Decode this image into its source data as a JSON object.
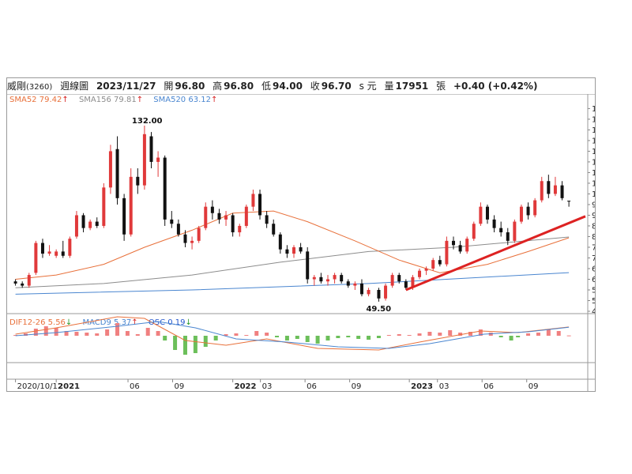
{
  "header": {
    "stock_name": "威剛",
    "stock_code": "(3260)",
    "chart_kind": "週線圖",
    "date": "2023/11/27",
    "open_label": "開",
    "open": "96.80",
    "high_label": "高",
    "high": "96.80",
    "low_label": "低",
    "low": "94.00",
    "close_label": "收",
    "close": "96.70",
    "close_suffix": "s 元",
    "volume_label": "量",
    "volume": "17951",
    "volume_unit": "張",
    "change": "+0.40 (+0.42%)"
  },
  "legend": {
    "sma52": {
      "label": "SMA52",
      "value": "79.42",
      "arrow": "↑",
      "color": "#e8703a"
    },
    "sma156": {
      "label": "SMA156",
      "value": "79.81",
      "arrow": "↑",
      "color": "#8c8c8c"
    },
    "sma520": {
      "label": "SMA520",
      "value": "63.12",
      "arrow": "↑",
      "color": "#4a86d0"
    },
    "dif": {
      "label": "DIF12-26",
      "value": "5.56",
      "arrow": "↓",
      "color": "#e8703a"
    },
    "macd": {
      "label": "MACD9",
      "value": "5.37",
      "arrow": "↑",
      "color": "#4a86d0"
    },
    "osc": {
      "label": "OSC",
      "value": "0.19",
      "arrow": "↓",
      "color": "#2255cc"
    }
  },
  "colors": {
    "up": "#e0393a",
    "down": "#111111",
    "osc_up": "#f08080",
    "osc_down": "#6cbf5a",
    "trendline": "#dd2222",
    "arrow_up": "#d62020",
    "arrow_down": "#2a9a2a"
  },
  "chart_data": {
    "type": "candlestick",
    "title": "",
    "y_ticks": [
      "140.0",
      "135.0",
      "130.0",
      "125.0",
      "120.0",
      "115.0",
      "110.0",
      "105.0",
      "100.0",
      "95.0",
      "90.0",
      "85.0",
      "80.0",
      "75.0",
      "70.0",
      "65.0",
      "60.0",
      "55.0",
      "50.0",
      "45.0"
    ],
    "ylim": [
      45,
      142
    ],
    "x_ticks": [
      {
        "label": "2020/10/12",
        "date": "2020-10-12"
      },
      {
        "label": "2021",
        "date": "2021-01-04"
      },
      {
        "label": "06",
        "date": "2021-06-01"
      },
      {
        "label": "09",
        "date": "2021-09-01"
      },
      {
        "label": "2022",
        "date": "2022-01-03"
      },
      {
        "label": "03",
        "date": "2022-03-01"
      },
      {
        "label": "06",
        "date": "2022-06-01"
      },
      {
        "label": "09",
        "date": "2022-09-01"
      },
      {
        "label": "2023",
        "date": "2023-01-02"
      },
      {
        "label": "03",
        "date": "2023-03-01"
      },
      {
        "label": "06",
        "date": "2023-06-01"
      },
      {
        "label": "09",
        "date": "2023-09-01"
      }
    ],
    "x_range": [
      "2020-09-28",
      "2023-12-31"
    ],
    "annotations": [
      {
        "text": "132.00",
        "date": "2021-07-05",
        "value": 132.0
      },
      {
        "text": "49.50",
        "date": "2022-10-31",
        "value": 49.5
      }
    ],
    "candles": [
      {
        "date": "2020-10-12",
        "o": 59,
        "h": 60,
        "l": 57,
        "c": 58
      },
      {
        "date": "2020-10-26",
        "o": 58,
        "h": 59,
        "l": 56,
        "c": 57
      },
      {
        "date": "2020-11-09",
        "o": 57,
        "h": 63,
        "l": 56,
        "c": 62
      },
      {
        "date": "2020-11-23",
        "o": 63,
        "h": 78,
        "l": 62,
        "c": 77
      },
      {
        "date": "2020-12-07",
        "o": 77,
        "h": 79,
        "l": 70,
        "c": 72
      },
      {
        "date": "2020-12-21",
        "o": 72,
        "h": 76,
        "l": 71,
        "c": 73
      },
      {
        "date": "2021-01-04",
        "o": 71,
        "h": 74,
        "l": 70,
        "c": 73
      },
      {
        "date": "2021-01-18",
        "o": 73,
        "h": 78,
        "l": 70,
        "c": 71
      },
      {
        "date": "2021-02-01",
        "o": 71,
        "h": 80,
        "l": 70,
        "c": 79
      },
      {
        "date": "2021-02-15",
        "o": 80,
        "h": 92,
        "l": 79,
        "c": 90
      },
      {
        "date": "2021-03-01",
        "o": 90,
        "h": 91,
        "l": 82,
        "c": 84
      },
      {
        "date": "2021-03-15",
        "o": 84,
        "h": 88,
        "l": 83,
        "c": 87
      },
      {
        "date": "2021-03-29",
        "o": 87,
        "h": 89,
        "l": 84,
        "c": 85
      },
      {
        "date": "2021-04-12",
        "o": 85,
        "h": 105,
        "l": 84,
        "c": 103
      },
      {
        "date": "2021-04-26",
        "o": 103,
        "h": 123,
        "l": 100,
        "c": 120
      },
      {
        "date": "2021-05-10",
        "o": 121,
        "h": 127,
        "l": 95,
        "c": 98
      },
      {
        "date": "2021-05-24",
        "o": 98,
        "h": 100,
        "l": 78,
        "c": 81
      },
      {
        "date": "2021-06-07",
        "o": 81,
        "h": 112,
        "l": 80,
        "c": 108
      },
      {
        "date": "2021-06-21",
        "o": 108,
        "h": 112,
        "l": 100,
        "c": 104
      },
      {
        "date": "2021-07-05",
        "o": 104,
        "h": 132,
        "l": 102,
        "c": 128
      },
      {
        "date": "2021-07-19",
        "o": 127,
        "h": 129,
        "l": 112,
        "c": 115
      },
      {
        "date": "2021-08-02",
        "o": 115,
        "h": 120,
        "l": 108,
        "c": 117
      },
      {
        "date": "2021-08-16",
        "o": 117,
        "h": 118,
        "l": 85,
        "c": 88
      },
      {
        "date": "2021-08-30",
        "o": 88,
        "h": 92,
        "l": 84,
        "c": 86
      },
      {
        "date": "2021-09-13",
        "o": 86,
        "h": 88,
        "l": 80,
        "c": 81
      },
      {
        "date": "2021-09-27",
        "o": 81,
        "h": 83,
        "l": 75,
        "c": 77
      },
      {
        "date": "2021-10-11",
        "o": 77,
        "h": 80,
        "l": 74,
        "c": 78
      },
      {
        "date": "2021-10-25",
        "o": 78,
        "h": 85,
        "l": 77,
        "c": 84
      },
      {
        "date": "2021-11-08",
        "o": 84,
        "h": 96,
        "l": 83,
        "c": 94
      },
      {
        "date": "2021-11-22",
        "o": 94,
        "h": 97,
        "l": 88,
        "c": 91
      },
      {
        "date": "2021-12-06",
        "o": 91,
        "h": 93,
        "l": 86,
        "c": 88
      },
      {
        "date": "2021-12-20",
        "o": 88,
        "h": 92,
        "l": 85,
        "c": 90
      },
      {
        "date": "2022-01-03",
        "o": 90,
        "h": 91,
        "l": 80,
        "c": 82
      },
      {
        "date": "2022-01-17",
        "o": 82,
        "h": 86,
        "l": 80,
        "c": 85
      },
      {
        "date": "2022-01-31",
        "o": 85,
        "h": 95,
        "l": 84,
        "c": 94
      },
      {
        "date": "2022-02-14",
        "o": 94,
        "h": 102,
        "l": 92,
        "c": 100
      },
      {
        "date": "2022-02-28",
        "o": 100,
        "h": 102,
        "l": 88,
        "c": 90
      },
      {
        "date": "2022-03-14",
        "o": 90,
        "h": 92,
        "l": 84,
        "c": 86
      },
      {
        "date": "2022-03-28",
        "o": 86,
        "h": 88,
        "l": 80,
        "c": 81
      },
      {
        "date": "2022-04-11",
        "o": 81,
        "h": 82,
        "l": 72,
        "c": 74
      },
      {
        "date": "2022-04-25",
        "o": 74,
        "h": 76,
        "l": 70,
        "c": 72
      },
      {
        "date": "2022-05-09",
        "o": 72,
        "h": 76,
        "l": 70,
        "c": 75
      },
      {
        "date": "2022-05-23",
        "o": 75,
        "h": 77,
        "l": 72,
        "c": 73
      },
      {
        "date": "2022-06-06",
        "o": 73,
        "h": 75,
        "l": 58,
        "c": 60
      },
      {
        "date": "2022-06-20",
        "o": 60,
        "h": 62,
        "l": 57,
        "c": 61
      },
      {
        "date": "2022-07-04",
        "o": 61,
        "h": 63,
        "l": 58,
        "c": 59
      },
      {
        "date": "2022-07-18",
        "o": 59,
        "h": 62,
        "l": 57,
        "c": 60
      },
      {
        "date": "2022-08-01",
        "o": 60,
        "h": 63,
        "l": 58,
        "c": 62
      },
      {
        "date": "2022-08-15",
        "o": 62,
        "h": 63,
        "l": 58,
        "c": 59
      },
      {
        "date": "2022-08-29",
        "o": 59,
        "h": 60,
        "l": 56,
        "c": 57
      },
      {
        "date": "2022-09-12",
        "o": 57,
        "h": 59,
        "l": 55,
        "c": 58
      },
      {
        "date": "2022-09-26",
        "o": 58,
        "h": 60,
        "l": 52,
        "c": 53
      },
      {
        "date": "2022-10-10",
        "o": 53,
        "h": 56,
        "l": 52,
        "c": 55
      },
      {
        "date": "2022-10-31",
        "o": 55,
        "h": 56,
        "l": 49.5,
        "c": 51
      },
      {
        "date": "2022-11-14",
        "o": 51,
        "h": 58,
        "l": 50,
        "c": 57
      },
      {
        "date": "2022-11-28",
        "o": 57,
        "h": 63,
        "l": 56,
        "c": 62
      },
      {
        "date": "2022-12-12",
        "o": 62,
        "h": 63,
        "l": 58,
        "c": 59
      },
      {
        "date": "2022-12-26",
        "o": 59,
        "h": 60,
        "l": 55,
        "c": 56
      },
      {
        "date": "2023-01-09",
        "o": 56,
        "h": 62,
        "l": 55,
        "c": 61
      },
      {
        "date": "2023-01-23",
        "o": 61,
        "h": 65,
        "l": 60,
        "c": 64
      },
      {
        "date": "2023-02-06",
        "o": 64,
        "h": 66,
        "l": 62,
        "c": 65
      },
      {
        "date": "2023-02-20",
        "o": 65,
        "h": 70,
        "l": 64,
        "c": 69
      },
      {
        "date": "2023-03-06",
        "o": 69,
        "h": 71,
        "l": 66,
        "c": 67
      },
      {
        "date": "2023-03-20",
        "o": 67,
        "h": 80,
        "l": 66,
        "c": 78
      },
      {
        "date": "2023-04-03",
        "o": 78,
        "h": 80,
        "l": 74,
        "c": 76
      },
      {
        "date": "2023-04-17",
        "o": 76,
        "h": 78,
        "l": 72,
        "c": 73
      },
      {
        "date": "2023-05-01",
        "o": 73,
        "h": 80,
        "l": 72,
        "c": 79
      },
      {
        "date": "2023-05-15",
        "o": 79,
        "h": 87,
        "l": 78,
        "c": 86
      },
      {
        "date": "2023-05-29",
        "o": 86,
        "h": 96,
        "l": 85,
        "c": 94
      },
      {
        "date": "2023-06-12",
        "o": 94,
        "h": 95,
        "l": 86,
        "c": 88
      },
      {
        "date": "2023-06-26",
        "o": 88,
        "h": 90,
        "l": 82,
        "c": 84
      },
      {
        "date": "2023-07-10",
        "o": 84,
        "h": 87,
        "l": 80,
        "c": 82
      },
      {
        "date": "2023-07-24",
        "o": 82,
        "h": 84,
        "l": 76,
        "c": 78
      },
      {
        "date": "2023-08-07",
        "o": 78,
        "h": 88,
        "l": 77,
        "c": 87
      },
      {
        "date": "2023-08-21",
        "o": 87,
        "h": 95,
        "l": 86,
        "c": 94
      },
      {
        "date": "2023-09-04",
        "o": 94,
        "h": 96,
        "l": 88,
        "c": 90
      },
      {
        "date": "2023-09-18",
        "o": 90,
        "h": 98,
        "l": 89,
        "c": 97
      },
      {
        "date": "2023-10-02",
        "o": 97,
        "h": 108,
        "l": 96,
        "c": 106
      },
      {
        "date": "2023-10-16",
        "o": 106,
        "h": 109,
        "l": 98,
        "c": 100
      },
      {
        "date": "2023-10-30",
        "o": 100,
        "h": 108,
        "l": 99,
        "c": 104
      },
      {
        "date": "2023-11-13",
        "o": 104,
        "h": 106,
        "l": 97,
        "c": 98
      },
      {
        "date": "2023-11-27",
        "o": 96.8,
        "h": 96.8,
        "l": 94,
        "c": 96.7
      }
    ],
    "sma52": [
      [
        "2020-10-12",
        60
      ],
      [
        "2021-01-04",
        62
      ],
      [
        "2021-04-12",
        67
      ],
      [
        "2021-07-05",
        75
      ],
      [
        "2021-10-11",
        83
      ],
      [
        "2022-01-03",
        91
      ],
      [
        "2022-03-28",
        92
      ],
      [
        "2022-06-06",
        87
      ],
      [
        "2022-09-12",
        78
      ],
      [
        "2022-12-12",
        69
      ],
      [
        "2023-03-06",
        63
      ],
      [
        "2023-06-12",
        67
      ],
      [
        "2023-09-04",
        73
      ],
      [
        "2023-11-27",
        79.42
      ]
    ],
    "sma156": [
      [
        "2020-10-12",
        56
      ],
      [
        "2021-04-12",
        58
      ],
      [
        "2021-10-11",
        62
      ],
      [
        "2022-04-11",
        68
      ],
      [
        "2022-10-10",
        73
      ],
      [
        "2023-04-03",
        75
      ],
      [
        "2023-11-27",
        79.81
      ]
    ],
    "sma520": [
      [
        "2020-10-12",
        53
      ],
      [
        "2021-10-11",
        55
      ],
      [
        "2022-10-10",
        58
      ],
      [
        "2023-11-27",
        63.12
      ]
    ],
    "trendline": [
      [
        "2022-12-26",
        55
      ],
      [
        "2023-12-31",
        89.5
      ]
    ],
    "macd_ticks": [
      "10",
      "0",
      "-10"
    ],
    "macd_ylim": [
      -15,
      12
    ],
    "osc": [
      [
        "2020-10-12",
        0.5
      ],
      [
        "2020-11-02",
        1.5
      ],
      [
        "2020-11-23",
        4.5
      ],
      [
        "2020-12-14",
        6
      ],
      [
        "2021-01-04",
        5
      ],
      [
        "2021-01-25",
        3
      ],
      [
        "2021-02-15",
        2.5
      ],
      [
        "2021-03-08",
        2
      ],
      [
        "2021-03-29",
        1.5
      ],
      [
        "2021-04-19",
        4
      ],
      [
        "2021-05-10",
        8
      ],
      [
        "2021-05-31",
        3
      ],
      [
        "2021-06-21",
        1
      ],
      [
        "2021-07-12",
        5
      ],
      [
        "2021-08-02",
        3
      ],
      [
        "2021-08-16",
        -3
      ],
      [
        "2021-09-06",
        -9
      ],
      [
        "2021-09-27",
        -12
      ],
      [
        "2021-10-18",
        -11
      ],
      [
        "2021-11-08",
        -7
      ],
      [
        "2021-11-29",
        -3
      ],
      [
        "2021-12-20",
        1
      ],
      [
        "2022-01-10",
        1.5
      ],
      [
        "2022-01-31",
        0.5
      ],
      [
        "2022-02-21",
        3
      ],
      [
        "2022-03-14",
        2
      ],
      [
        "2022-04-04",
        -1
      ],
      [
        "2022-04-25",
        -3
      ],
      [
        "2022-05-16",
        -2
      ],
      [
        "2022-06-06",
        -4
      ],
      [
        "2022-06-27",
        -5
      ],
      [
        "2022-07-18",
        -3
      ],
      [
        "2022-08-08",
        -1.5
      ],
      [
        "2022-08-29",
        -1
      ],
      [
        "2022-09-19",
        -2
      ],
      [
        "2022-10-10",
        -2.5
      ],
      [
        "2022-10-31",
        -1.5
      ],
      [
        "2022-11-21",
        0.5
      ],
      [
        "2022-12-12",
        1
      ],
      [
        "2023-01-02",
        0.5
      ],
      [
        "2023-01-23",
        1.5
      ],
      [
        "2023-02-13",
        2.5
      ],
      [
        "2023-03-06",
        2
      ],
      [
        "2023-03-27",
        3.5
      ],
      [
        "2023-04-17",
        2
      ],
      [
        "2023-05-08",
        2.5
      ],
      [
        "2023-05-29",
        4
      ],
      [
        "2023-06-19",
        2
      ],
      [
        "2023-07-10",
        -1
      ],
      [
        "2023-07-31",
        -3
      ],
      [
        "2023-08-14",
        -1
      ],
      [
        "2023-09-04",
        1.5
      ],
      [
        "2023-09-25",
        2
      ],
      [
        "2023-10-16",
        4
      ],
      [
        "2023-11-06",
        3
      ],
      [
        "2023-11-27",
        0.19
      ]
    ],
    "dif": [
      [
        "2020-10-12",
        1
      ],
      [
        "2021-01-04",
        5
      ],
      [
        "2021-05-10",
        12
      ],
      [
        "2021-07-05",
        11
      ],
      [
        "2021-09-27",
        -3
      ],
      [
        "2021-12-20",
        -6
      ],
      [
        "2022-03-14",
        -2
      ],
      [
        "2022-06-27",
        -8
      ],
      [
        "2022-10-31",
        -9
      ],
      [
        "2023-01-23",
        -4
      ],
      [
        "2023-05-29",
        3
      ],
      [
        "2023-08-14",
        2
      ],
      [
        "2023-11-27",
        5.56
      ]
    ],
    "macd": [
      [
        "2020-10-12",
        0
      ],
      [
        "2021-01-04",
        2
      ],
      [
        "2021-05-10",
        6
      ],
      [
        "2021-08-02",
        9
      ],
      [
        "2021-10-18",
        5
      ],
      [
        "2022-01-10",
        -2
      ],
      [
        "2022-04-25",
        -4
      ],
      [
        "2022-08-08",
        -7
      ],
      [
        "2022-11-21",
        -8
      ],
      [
        "2023-02-13",
        -5
      ],
      [
        "2023-06-05",
        1
      ],
      [
        "2023-09-04",
        2.5
      ],
      [
        "2023-11-27",
        5.37
      ]
    ]
  }
}
